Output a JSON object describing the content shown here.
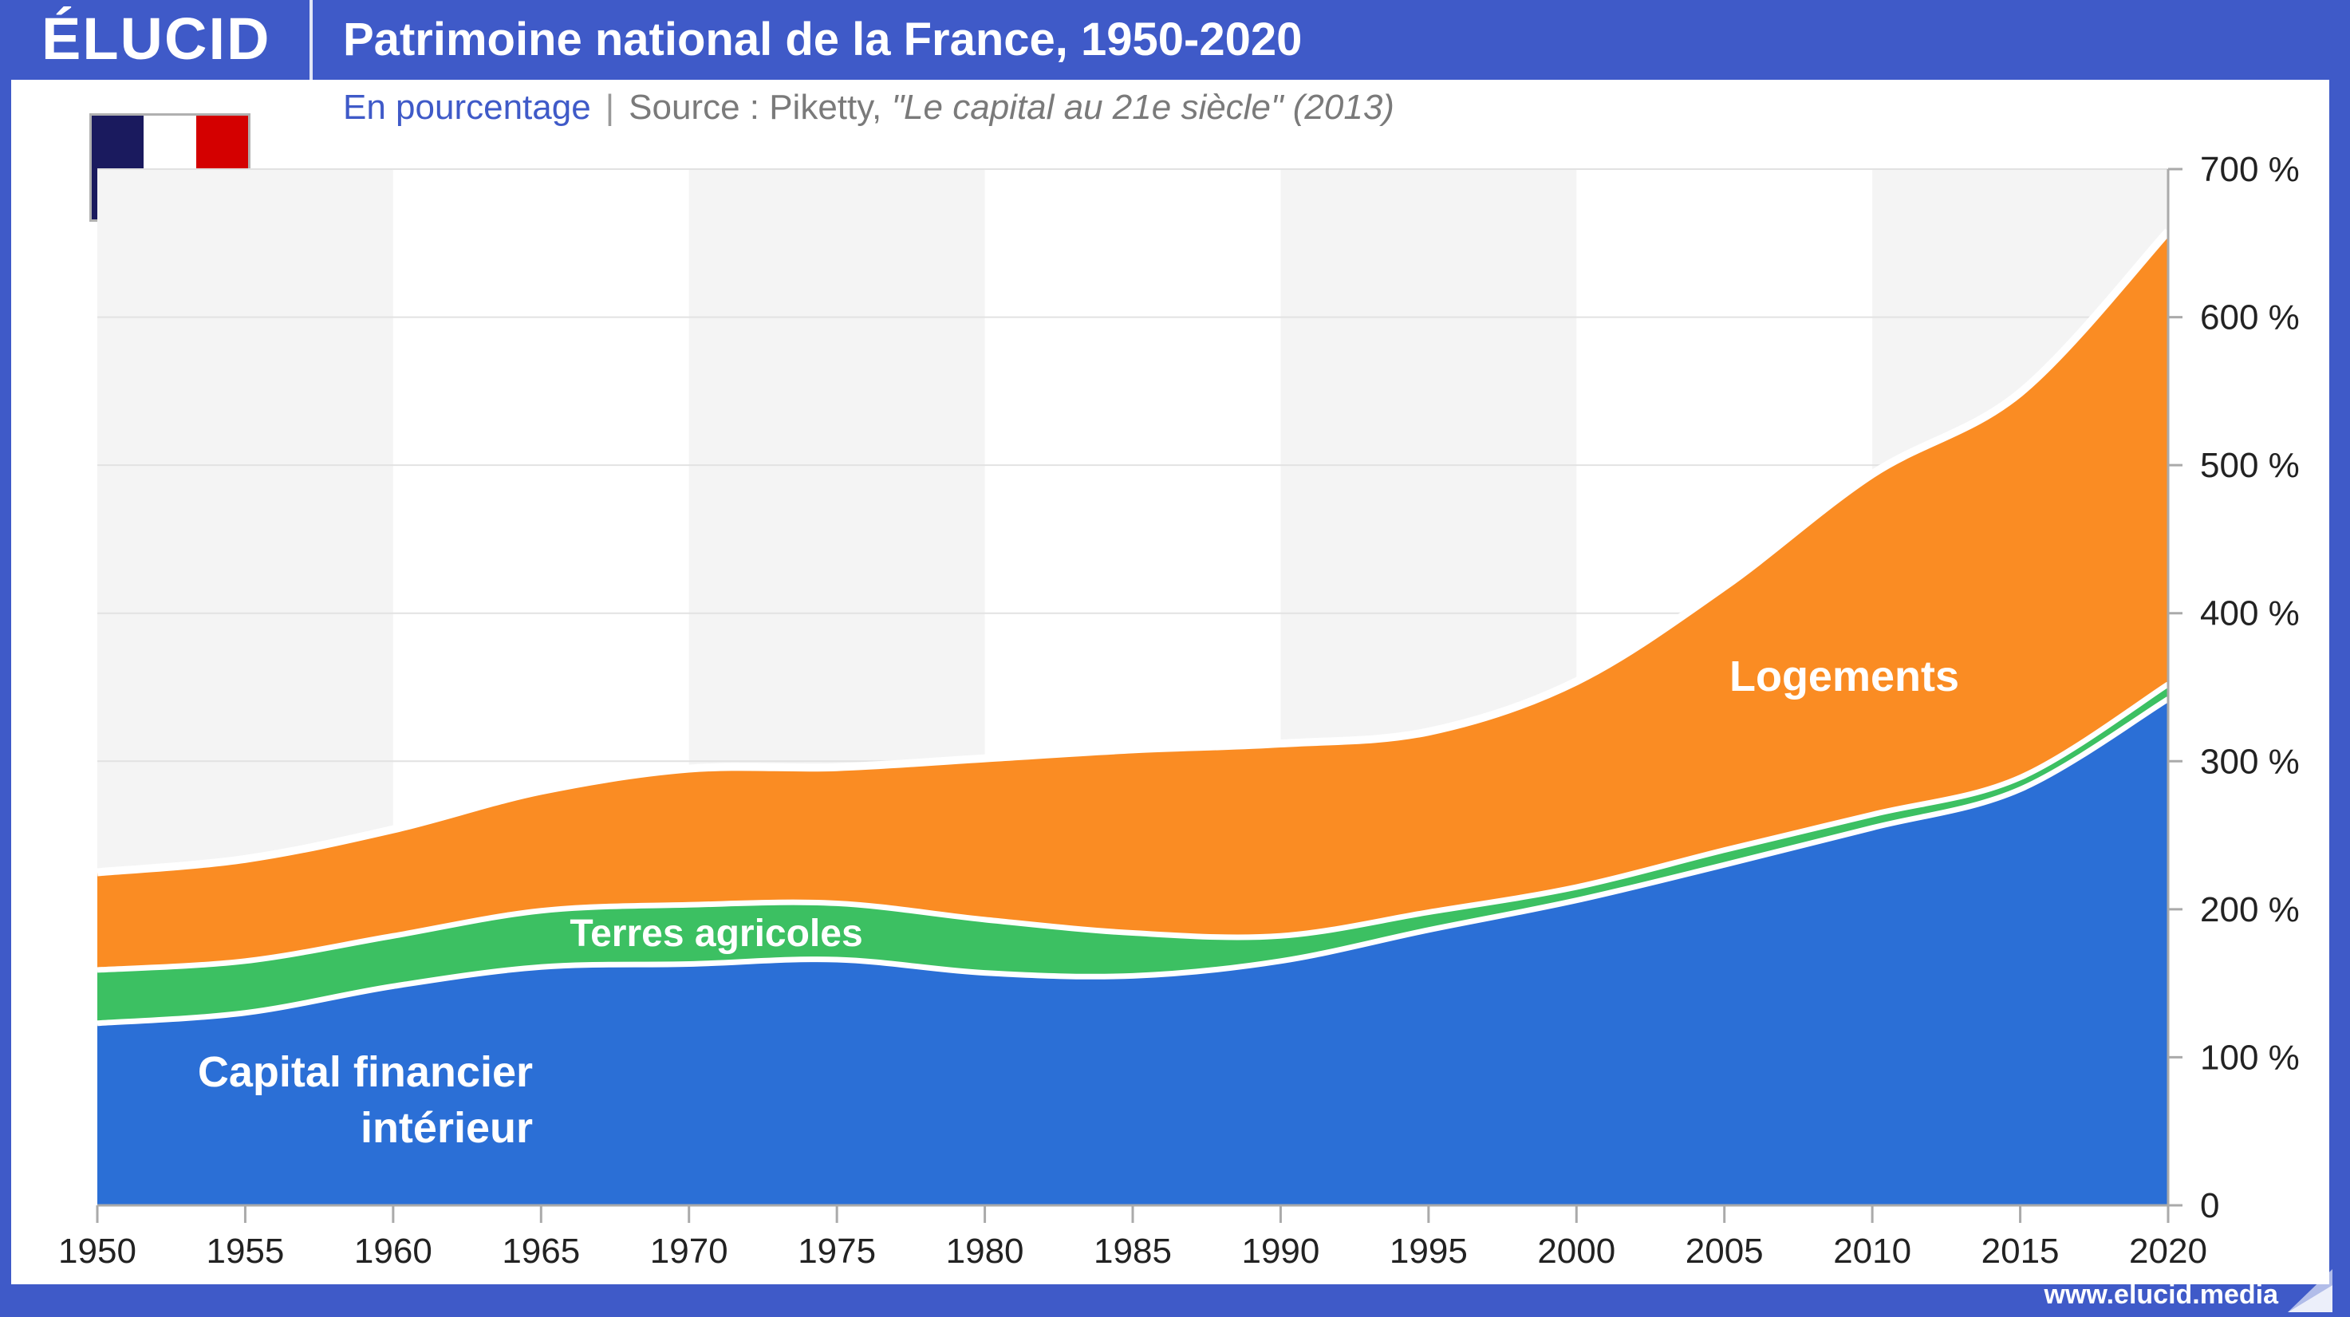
{
  "header": {
    "logo": "ÉLUCID",
    "title": "Patrimoine national de la France, 1950-2020"
  },
  "subtitle": {
    "unit": "En pourcentage",
    "separator": "|",
    "source_prefix": "Source : Piketty, ",
    "source_book": "\"Le capital au 21e siècle\" (2013)"
  },
  "flag": {
    "name": "France",
    "colors": [
      "#1a1a5e",
      "#ffffff",
      "#d40000"
    ]
  },
  "footer": {
    "url": "www.elucid.media"
  },
  "colors": {
    "brand": "#3f5ac8",
    "financial": "#2b6fd6",
    "agricultural": "#3cc062",
    "housing": "#fa8c23",
    "shading": "#f4f4f4"
  },
  "chart_data": {
    "type": "area",
    "stacked": true,
    "title": "Patrimoine national de la France, 1950-2020",
    "subtitle": "En pourcentage",
    "xlabel": "",
    "ylabel": "",
    "x": [
      1950,
      1955,
      1960,
      1965,
      1970,
      1975,
      1980,
      1985,
      1990,
      1995,
      2000,
      2005,
      2010,
      2015,
      2020
    ],
    "xticks": [
      "1950",
      "1955",
      "1960",
      "1965",
      "1970",
      "1975",
      "1980",
      "1985",
      "1990",
      "1995",
      "2000",
      "2005",
      "2010",
      "2015",
      "2020"
    ],
    "yticks": [
      "0",
      "100 %",
      "200 %",
      "300 %",
      "400 %",
      "500 %",
      "600 %",
      "700 %"
    ],
    "ylim": [
      0,
      700
    ],
    "xlim": [
      1950,
      2020
    ],
    "y_axis_side": "right",
    "grid": true,
    "legend": "inline labels",
    "series": [
      {
        "name": "Capital financier intérieur",
        "label_lines": [
          "Capital financier",
          "intérieur"
        ],
        "color": "#2b6fd6",
        "values": [
          123,
          130,
          148,
          161,
          163,
          166,
          157,
          155,
          165,
          186,
          206,
          230,
          255,
          281,
          342
        ]
      },
      {
        "name": "Terres agricoles",
        "label_lines": [
          "Terres agricoles"
        ],
        "color": "#3cc062",
        "values": [
          36,
          35,
          34,
          38,
          40,
          38,
          36,
          29,
          17,
          12,
          9,
          10,
          9,
          8,
          10
        ]
      },
      {
        "name": "Logements",
        "label_lines": [
          "Logements"
        ],
        "color": "#fa8c23",
        "values": [
          66,
          69,
          72,
          81,
          92,
          92,
          109,
          124,
          130,
          122,
          139,
          178,
          230,
          260,
          306
        ]
      }
    ]
  }
}
